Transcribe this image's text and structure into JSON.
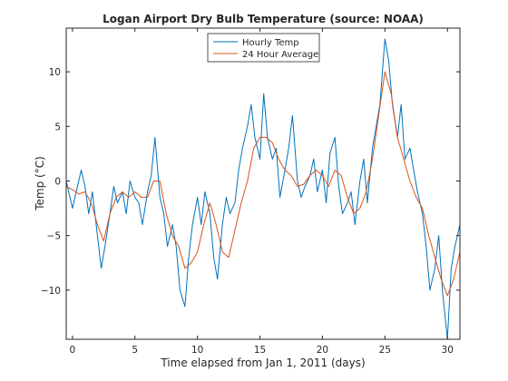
{
  "chart_data": {
    "type": "line",
    "title": "Logan Airport Dry Bulb Temperature (source: NOAA)",
    "xlabel": "Time elapsed from Jan 1, 2011 (days)",
    "ylabel": "Temp (°C)",
    "xlim": [
      -0.5,
      31
    ],
    "ylim": [
      -14.5,
      14
    ],
    "xticks": [
      0,
      5,
      10,
      15,
      20,
      25,
      30
    ],
    "yticks": [
      -10,
      -5,
      0,
      5,
      10
    ],
    "grid": false,
    "legend_position": "top-center",
    "series": [
      {
        "name": "Hourly Temp",
        "color": "#0072bd",
        "x": [
          -0.5,
          0.0,
          0.3,
          0.7,
          1.0,
          1.3,
          1.6,
          2.0,
          2.3,
          2.6,
          3.0,
          3.3,
          3.6,
          4.0,
          4.3,
          4.6,
          5.0,
          5.3,
          5.6,
          6.0,
          6.3,
          6.6,
          7.0,
          7.3,
          7.6,
          8.0,
          8.3,
          8.6,
          9.0,
          9.3,
          9.6,
          10.0,
          10.3,
          10.6,
          11.0,
          11.3,
          11.6,
          12.0,
          12.3,
          12.6,
          13.0,
          13.3,
          13.6,
          14.0,
          14.3,
          14.6,
          15.0,
          15.3,
          15.6,
          16.0,
          16.3,
          16.6,
          17.0,
          17.3,
          17.6,
          18.0,
          18.3,
          18.6,
          19.0,
          19.3,
          19.6,
          20.0,
          20.3,
          20.6,
          21.0,
          21.3,
          21.6,
          22.0,
          22.3,
          22.6,
          23.0,
          23.3,
          23.6,
          24.0,
          24.3,
          24.6,
          25.0,
          25.3,
          25.6,
          26.0,
          26.3,
          26.6,
          27.0,
          27.3,
          27.6,
          28.0,
          28.3,
          28.6,
          29.0,
          29.3,
          29.6,
          30.0,
          30.3,
          30.6,
          31.0
        ],
        "values": [
          0.0,
          -2.5,
          -1.0,
          1.0,
          -0.5,
          -3.0,
          -1.0,
          -5.0,
          -8.0,
          -6.0,
          -3.0,
          -0.5,
          -2.0,
          -1.0,
          -3.0,
          0.0,
          -1.5,
          -2.0,
          -4.0,
          -1.0,
          0.5,
          4.0,
          -1.5,
          -3.0,
          -6.0,
          -4.0,
          -6.0,
          -10.0,
          -11.5,
          -7.0,
          -4.0,
          -1.5,
          -4.0,
          -1.0,
          -3.0,
          -7.0,
          -9.0,
          -4.0,
          -1.5,
          -3.0,
          -2.0,
          1.0,
          3.0,
          5.0,
          7.0,
          4.0,
          2.0,
          8.0,
          4.0,
          2.0,
          3.0,
          -1.5,
          1.0,
          3.0,
          6.0,
          0.0,
          -1.5,
          -0.5,
          0.5,
          2.0,
          -1.0,
          1.0,
          -2.0,
          2.5,
          4.0,
          -0.5,
          -3.0,
          -2.0,
          -1.0,
          -4.0,
          0.0,
          2.0,
          -2.0,
          3.0,
          5.0,
          7.0,
          13.0,
          11.0,
          7.0,
          4.0,
          7.0,
          2.0,
          3.0,
          1.0,
          -1.0,
          -3.0,
          -6.0,
          -10.0,
          -8.0,
          -5.0,
          -10.0,
          -14.5,
          -8.0,
          -6.0,
          -4.0
        ]
      },
      {
        "name": "24 Hour Average",
        "color": "#d95319",
        "x": [
          -0.5,
          0.0,
          0.5,
          1.0,
          1.5,
          2.0,
          2.5,
          3.0,
          3.5,
          4.0,
          4.5,
          5.0,
          5.5,
          6.0,
          6.5,
          7.0,
          7.5,
          8.0,
          8.5,
          9.0,
          9.5,
          10.0,
          10.5,
          11.0,
          11.5,
          12.0,
          12.5,
          13.0,
          13.5,
          14.0,
          14.5,
          15.0,
          15.5,
          16.0,
          16.5,
          17.0,
          17.5,
          18.0,
          18.5,
          19.0,
          19.5,
          20.0,
          20.5,
          21.0,
          21.5,
          22.0,
          22.5,
          23.0,
          23.5,
          24.0,
          24.5,
          25.0,
          25.5,
          26.0,
          26.5,
          27.0,
          27.5,
          28.0,
          28.5,
          29.0,
          29.5,
          30.0,
          30.5,
          31.0
        ],
        "values": [
          -0.5,
          -0.8,
          -1.2,
          -1.0,
          -2.0,
          -4.0,
          -5.5,
          -3.0,
          -1.5,
          -1.0,
          -1.5,
          -1.0,
          -1.5,
          -1.5,
          0.0,
          0.0,
          -3.0,
          -5.0,
          -6.0,
          -8.0,
          -7.5,
          -6.5,
          -4.0,
          -2.0,
          -4.0,
          -6.5,
          -7.0,
          -4.5,
          -2.0,
          0.0,
          3.0,
          4.0,
          4.0,
          3.5,
          2.0,
          1.0,
          0.5,
          -0.5,
          -0.3,
          0.5,
          1.0,
          0.5,
          -0.5,
          1.0,
          0.5,
          -1.5,
          -3.0,
          -2.5,
          -1.0,
          2.0,
          6.0,
          10.0,
          8.0,
          4.0,
          2.0,
          0.0,
          -1.5,
          -2.5,
          -5.0,
          -7.0,
          -9.0,
          -10.5,
          -9.0,
          -6.5
        ]
      }
    ]
  }
}
